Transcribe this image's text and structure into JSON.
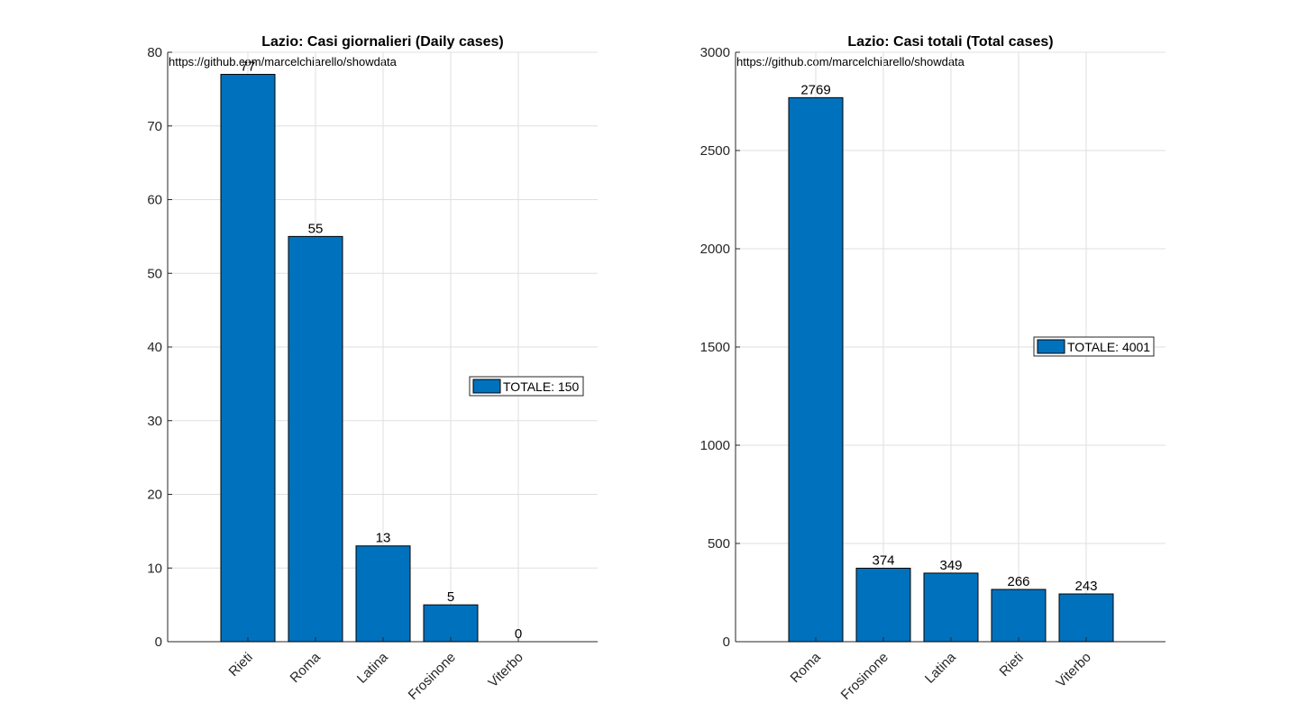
{
  "bar_color": "#0072BD",
  "chart_data": [
    {
      "type": "bar",
      "title": "Lazio: Casi giornalieri (Daily cases)",
      "watermark": "https://github.com/marcelchiarello/showdata",
      "categories": [
        "Rieti",
        "Roma",
        "Latina",
        "Frosinone",
        "Viterbo"
      ],
      "values": [
        77,
        55,
        13,
        5,
        0
      ],
      "data_labels": [
        "77",
        "55",
        "13",
        "5",
        "0"
      ],
      "ylim": [
        0,
        80
      ],
      "yticks": [
        0,
        10,
        20,
        30,
        40,
        50,
        60,
        70,
        80
      ],
      "ytick_labels": [
        "0",
        "10",
        "20",
        "30",
        "40",
        "50",
        "60",
        "70",
        "80"
      ],
      "xlabel": "",
      "ylabel": "",
      "grid": true,
      "legend": {
        "label": "TOTALE: 150",
        "placement": "right"
      }
    },
    {
      "type": "bar",
      "title": "Lazio: Casi totali (Total cases)",
      "watermark": "https://github.com/marcelchiarello/showdata",
      "categories": [
        "Roma",
        "Frosinone",
        "Latina",
        "Rieti",
        "Viterbo"
      ],
      "values": [
        2769,
        374,
        349,
        266,
        243
      ],
      "data_labels": [
        "2769",
        "374",
        "349",
        "266",
        "243"
      ],
      "ylim": [
        0,
        3000
      ],
      "yticks": [
        0,
        500,
        1000,
        1500,
        2000,
        2500,
        3000
      ],
      "ytick_labels": [
        "0",
        "500",
        "1000",
        "1500",
        "2000",
        "2500",
        "3000"
      ],
      "xlabel": "",
      "ylabel": "",
      "grid": true,
      "legend": {
        "label": "TOTALE: 4001",
        "placement": "right"
      }
    }
  ]
}
